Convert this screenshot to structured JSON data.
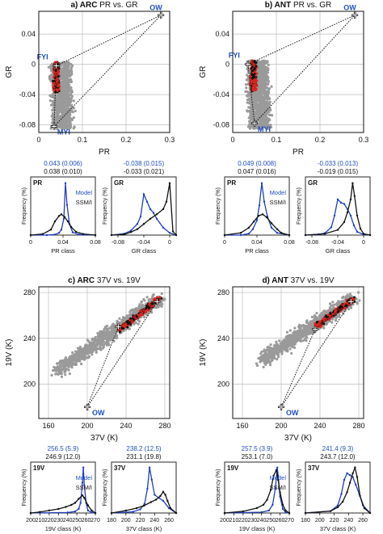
{
  "chart_data": [
    {
      "type": "scatter",
      "title_prefix": "a) ARC",
      "title_rest": "PR vs. GR",
      "xlabel": "PR",
      "ylabel": "GR",
      "xlim": [
        0,
        0.3
      ],
      "ylim": [
        -0.09,
        0.07
      ],
      "xticks": [
        0,
        0.1,
        0.2,
        0.3
      ],
      "xtick_labels": [
        "0",
        "0.1",
        "0.2",
        "0.3"
      ],
      "yticks": [
        -0.08,
        -0.04,
        0,
        0.04
      ],
      "ytick_labels": [
        "-0.08",
        "-0.04",
        "0",
        "0.04"
      ],
      "grid": true,
      "tiepoints": [
        {
          "label": "OW",
          "x": 0.28,
          "y": 0.065
        },
        {
          "label": "FYI",
          "x": 0.04,
          "y": -0.002
        },
        {
          "label": "MYI",
          "x": 0.035,
          "y": -0.082
        }
      ],
      "cloud": {
        "x": [
          0.01,
          0.09
        ],
        "y": [
          -0.085,
          0.003
        ]
      }
    },
    {
      "type": "scatter",
      "title_prefix": "b) ANT",
      "title_rest": "PR vs. GR",
      "xlabel": "PR",
      "ylabel": "GR",
      "xlim": [
        0,
        0.3
      ],
      "ylim": [
        -0.09,
        0.07
      ],
      "xticks": [
        0,
        0.1,
        0.2,
        0.3
      ],
      "xtick_labels": [
        "0",
        "0.1",
        "0.2",
        "0.3"
      ],
      "yticks": [
        -0.08,
        -0.04,
        0,
        0.04
      ],
      "ytick_labels": [
        "-0.08",
        "-0.04",
        "0",
        "0.04"
      ],
      "grid": true,
      "tiepoints": [
        {
          "label": "OW",
          "x": 0.28,
          "y": 0.065
        },
        {
          "label": "FYI",
          "x": 0.035,
          "y": 0.0
        },
        {
          "label": "MYI",
          "x": 0.05,
          "y": -0.078
        }
      ],
      "cloud": {
        "x": [
          0.015,
          0.1
        ],
        "y": [
          -0.085,
          0.005
        ]
      }
    },
    {
      "type": "line",
      "panel": "PR",
      "xlabel": "PR class",
      "ylabel": "Frequency (%)",
      "xlim": [
        0,
        0.08
      ],
      "xticks": [
        0,
        0.04,
        0.08
      ],
      "xtick_labels": [
        "0",
        "0.04",
        "0.08"
      ],
      "stats_model": "0.043 (0.006)",
      "stats_ssmi": "0.038 (0.010)",
      "legend": [
        "Model",
        "SSM/I"
      ],
      "series": [
        {
          "name": "Model",
          "x": [
            0,
            0.02,
            0.03,
            0.035,
            0.038,
            0.041,
            0.043,
            0.045,
            0.048,
            0.052,
            0.06,
            0.08
          ],
          "values": [
            0,
            0,
            1,
            4,
            10,
            30,
            95,
            55,
            20,
            5,
            1,
            0
          ]
        },
        {
          "name": "SSM/I",
          "x": [
            0,
            0.015,
            0.025,
            0.03,
            0.035,
            0.038,
            0.042,
            0.046,
            0.05,
            0.056,
            0.065,
            0.08
          ],
          "values": [
            0,
            2,
            10,
            25,
            35,
            38,
            33,
            25,
            15,
            6,
            2,
            0
          ]
        }
      ]
    },
    {
      "type": "line",
      "panel": "GR",
      "xlabel": "GR class",
      "ylabel": "Frequency (%)",
      "xlim": [
        -0.09,
        0.01
      ],
      "xticks": [
        -0.08,
        -0.04,
        0
      ],
      "xtick_labels": [
        "-0.08",
        "-0.04",
        "0"
      ],
      "stats_model": "-0.038 (0.015)",
      "stats_ssmi": "-0.033 (0.021)",
      "series": [
        {
          "name": "Model",
          "x": [
            -0.09,
            -0.07,
            -0.06,
            -0.05,
            -0.045,
            -0.04,
            -0.035,
            -0.03,
            -0.025,
            -0.02,
            -0.01,
            0.0,
            0.01
          ],
          "values": [
            0,
            2,
            6,
            15,
            25,
            55,
            45,
            35,
            30,
            22,
            10,
            3,
            0
          ]
        },
        {
          "name": "SSM/I",
          "x": [
            -0.09,
            -0.07,
            -0.06,
            -0.05,
            -0.04,
            -0.03,
            -0.02,
            -0.01,
            -0.005,
            0.0,
            0.005,
            0.01
          ],
          "values": [
            0,
            1,
            4,
            8,
            15,
            22,
            28,
            35,
            45,
            70,
            5,
            0
          ]
        }
      ]
    },
    {
      "type": "line",
      "panel": "PR",
      "xlabel": "PR class",
      "ylabel": "Frequency (%)",
      "xlim": [
        0,
        0.08
      ],
      "xticks": [
        0,
        0.04,
        0.08
      ],
      "xtick_labels": [
        "0",
        "0.04",
        "0.08"
      ],
      "stats_model": "0.049 (0.008)",
      "stats_ssmi": "0.047 (0.016)",
      "legend": [
        "Model",
        "SSM/I"
      ],
      "series": [
        {
          "name": "Model",
          "x": [
            0,
            0.02,
            0.03,
            0.035,
            0.04,
            0.043,
            0.046,
            0.049,
            0.053,
            0.058,
            0.065,
            0.08
          ],
          "values": [
            0,
            0,
            2,
            8,
            20,
            40,
            70,
            45,
            25,
            10,
            3,
            0
          ]
        },
        {
          "name": "SSM/I",
          "x": [
            0,
            0.02,
            0.03,
            0.036,
            0.042,
            0.047,
            0.052,
            0.058,
            0.065,
            0.07,
            0.08
          ],
          "values": [
            0,
            3,
            10,
            18,
            26,
            28,
            24,
            16,
            8,
            3,
            0
          ]
        }
      ]
    },
    {
      "type": "line",
      "panel": "GR",
      "xlabel": "GR class",
      "ylabel": "Frequency (%)",
      "xlim": [
        -0.09,
        0.01
      ],
      "xticks": [
        -0.08,
        -0.04,
        0
      ],
      "xtick_labels": [
        "-0.08",
        "-0.04",
        "0"
      ],
      "stats_model": "-0.033 (0.013)",
      "stats_ssmi": "-0.019 (0.015)",
      "series": [
        {
          "name": "Model",
          "x": [
            -0.09,
            -0.07,
            -0.06,
            -0.05,
            -0.045,
            -0.04,
            -0.035,
            -0.03,
            -0.025,
            -0.02,
            -0.015,
            -0.01,
            0.0,
            0.01
          ],
          "values": [
            0,
            1,
            3,
            12,
            30,
            55,
            50,
            48,
            40,
            30,
            15,
            5,
            1,
            0
          ]
        },
        {
          "name": "SSM/I",
          "x": [
            -0.09,
            -0.06,
            -0.04,
            -0.03,
            -0.025,
            -0.02,
            -0.017,
            -0.014,
            -0.01,
            -0.005,
            0.0,
            0.01
          ],
          "values": [
            0,
            2,
            8,
            20,
            35,
            55,
            80,
            60,
            30,
            10,
            2,
            0
          ]
        }
      ]
    },
    {
      "type": "scatter",
      "title_prefix": "c) ARC",
      "title_rest": "37V vs. 19V",
      "xlabel": "37V (K)",
      "ylabel": "19V (K)",
      "xlim": [
        150,
        285
      ],
      "ylim": [
        170,
        285
      ],
      "xticks": [
        160,
        200,
        240,
        280
      ],
      "xtick_labels": [
        "160",
        "200",
        "240",
        "280"
      ],
      "yticks": [
        200,
        240,
        280
      ],
      "ytick_labels": [
        "200",
        "240",
        "280"
      ],
      "grid": true,
      "tiepoints": [
        {
          "label": "OW",
          "x": 200,
          "y": 180
        },
        {
          "label": "FYI",
          "x": 272,
          "y": 272
        },
        {
          "label": "MYI",
          "x": 232,
          "y": 250
        }
      ],
      "cloud": {
        "x": [
          170,
          275
        ],
        "y": [
          205,
          275
        ]
      }
    },
    {
      "type": "scatter",
      "title_prefix": "d) ANT",
      "title_rest": "37V vs. 19V",
      "xlabel": "37V (K)",
      "ylabel": "19V (K)",
      "xlim": [
        150,
        285
      ],
      "ylim": [
        170,
        285
      ],
      "xticks": [
        160,
        200,
        240,
        280
      ],
      "xtick_labels": [
        "160",
        "200",
        "240",
        "280"
      ],
      "yticks": [
        200,
        240,
        280
      ],
      "ytick_labels": [
        "200",
        "240",
        "280"
      ],
      "grid": true,
      "tiepoints": [
        {
          "label": "OW",
          "x": 200,
          "y": 180
        },
        {
          "label": "FYI",
          "x": 272,
          "y": 272
        },
        {
          "label": "MYI",
          "x": 235,
          "y": 248
        }
      ],
      "cloud": {
        "x": [
          180,
          275
        ],
        "y": [
          215,
          275
        ]
      }
    },
    {
      "type": "line",
      "panel": "19V",
      "xlabel": "19V class (K)",
      "ylabel": "Frequency (%)",
      "xlim": [
        200,
        270
      ],
      "xticks": [
        200,
        210,
        220,
        230,
        240,
        250,
        260,
        270
      ],
      "xtick_labels": [
        "200",
        "210",
        "220",
        "230",
        "240",
        "250",
        "260",
        "270"
      ],
      "stats_model": "256.5 (5.9)",
      "stats_ssmi": "246.9 (12.0)",
      "legend": [
        "Model",
        "SSM/I"
      ],
      "series": [
        {
          "name": "Model",
          "x": [
            200,
            240,
            248,
            252,
            254,
            256,
            257,
            258,
            260,
            262,
            266,
            270
          ],
          "values": [
            0,
            1,
            3,
            8,
            20,
            60,
            90,
            55,
            20,
            5,
            1,
            0
          ]
        },
        {
          "name": "SSM/I",
          "x": [
            200,
            210,
            220,
            230,
            238,
            244,
            248,
            252,
            256,
            258,
            262,
            266,
            270
          ],
          "values": [
            0,
            2,
            5,
            8,
            12,
            16,
            20,
            28,
            35,
            30,
            15,
            5,
            0
          ]
        }
      ]
    },
    {
      "type": "line",
      "panel": "37V",
      "xlabel": "37V class (K)",
      "ylabel": "Frequency (%)",
      "xlim": [
        180,
        270
      ],
      "xticks": [
        180,
        200,
        220,
        240,
        260
      ],
      "xtick_labels": [
        "180",
        "200",
        "220",
        "240",
        "260"
      ],
      "stats_model": "238.2 (12.5)",
      "stats_ssmi": "231.1 (19.8)",
      "series": [
        {
          "name": "Model",
          "x": [
            180,
            210,
            220,
            226,
            230,
            233,
            236,
            240,
            246,
            252,
            260,
            270
          ],
          "values": [
            0,
            2,
            6,
            15,
            40,
            75,
            55,
            30,
            25,
            20,
            8,
            0
          ]
        },
        {
          "name": "SSM/I",
          "x": [
            180,
            200,
            215,
            225,
            235,
            242,
            248,
            252,
            255,
            258,
            262,
            270
          ],
          "values": [
            0,
            4,
            8,
            12,
            18,
            22,
            28,
            35,
            30,
            20,
            8,
            0
          ]
        }
      ]
    },
    {
      "type": "line",
      "panel": "19V",
      "xlabel": "19V class (K)",
      "ylabel": "Frequency (%)",
      "xlim": [
        200,
        270
      ],
      "xticks": [
        200,
        210,
        220,
        230,
        240,
        250,
        260,
        270
      ],
      "xtick_labels": [
        "200",
        "210",
        "220",
        "230",
        "240",
        "250",
        "260",
        "270"
      ],
      "stats_model": "257.5 (3.9)",
      "stats_ssmi": "253.1 (7.0)",
      "legend": [
        "Model",
        "SSM/I"
      ],
      "series": [
        {
          "name": "Model",
          "x": [
            200,
            240,
            248,
            252,
            255,
            257,
            258,
            260,
            263,
            266,
            270
          ],
          "values": [
            0,
            1,
            3,
            10,
            30,
            55,
            45,
            20,
            5,
            1,
            0
          ]
        },
        {
          "name": "SSM/I",
          "x": [
            200,
            220,
            235,
            242,
            246,
            250,
            253,
            256,
            258,
            260,
            263,
            266,
            270
          ],
          "values": [
            0,
            2,
            6,
            10,
            16,
            28,
            45,
            52,
            40,
            25,
            10,
            3,
            0
          ]
        }
      ]
    },
    {
      "type": "line",
      "panel": "37V",
      "xlabel": "37V class (K)",
      "ylabel": "Frequency (%)",
      "xlim": [
        180,
        270
      ],
      "xticks": [
        180,
        200,
        220,
        240,
        260
      ],
      "xtick_labels": [
        "180",
        "200",
        "220",
        "240",
        "260"
      ],
      "stats_model": "241.4 (9.3)",
      "stats_ssmi": "243.7 (12.0)",
      "series": [
        {
          "name": "Model",
          "x": [
            180,
            215,
            225,
            230,
            234,
            238,
            242,
            246,
            250,
            255,
            260,
            270
          ],
          "values": [
            0,
            2,
            8,
            20,
            35,
            42,
            40,
            38,
            30,
            20,
            8,
            0
          ]
        },
        {
          "name": "SSM/I",
          "x": [
            180,
            215,
            225,
            232,
            238,
            242,
            246,
            249,
            252,
            256,
            262,
            270
          ],
          "values": [
            0,
            2,
            6,
            12,
            22,
            32,
            42,
            48,
            38,
            18,
            5,
            0
          ]
        }
      ]
    }
  ]
}
